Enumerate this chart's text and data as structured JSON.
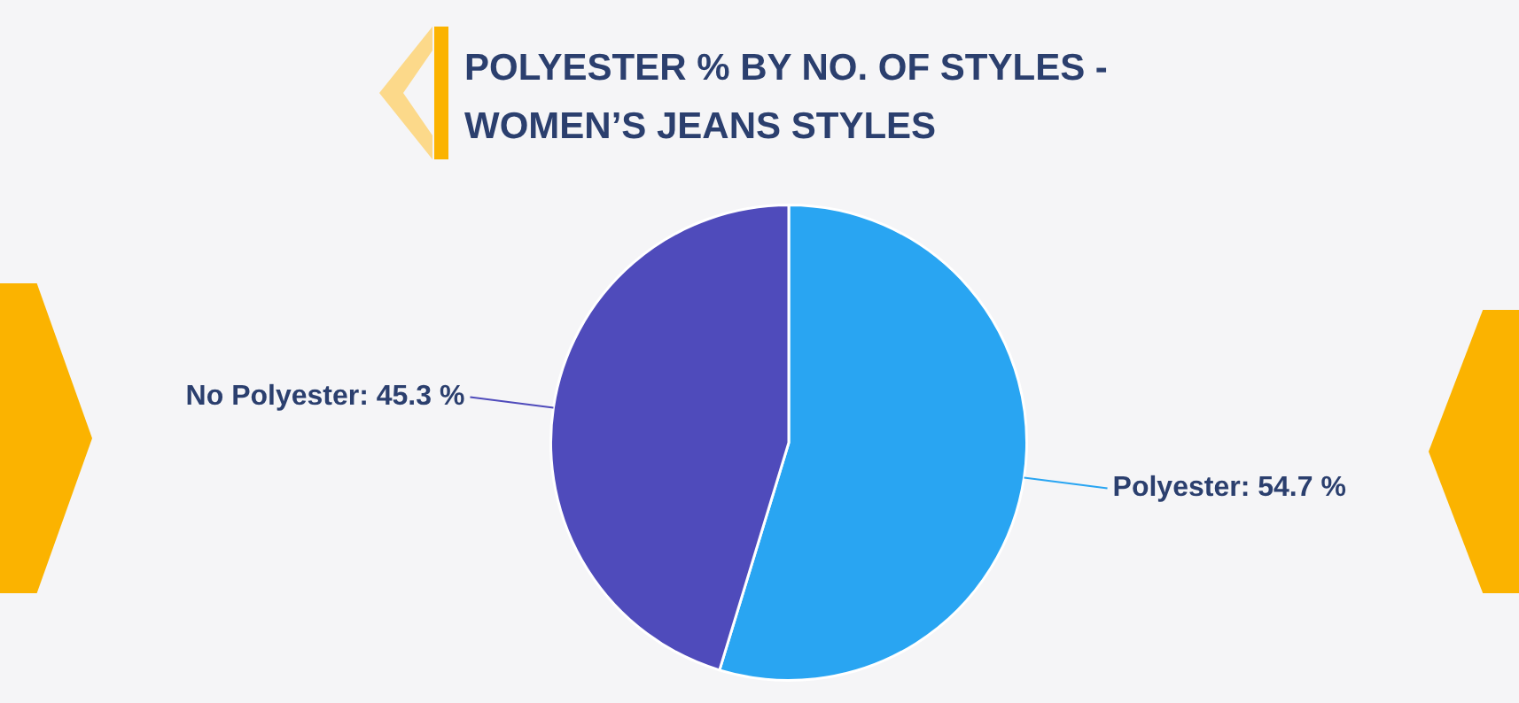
{
  "chart_data": {
    "type": "pie",
    "title": "POLYESTER % BY NO. OF STYLES -\nWOMEN’S JEANS STYLES",
    "categories": [
      "Polyester",
      "No Polyester"
    ],
    "values": [
      54.7,
      45.3
    ],
    "value_labels": [
      "54.7 %",
      "45.3 %"
    ],
    "colors": [
      "#29a5f2",
      "#4f4bbb"
    ],
    "legend": false
  }
}
